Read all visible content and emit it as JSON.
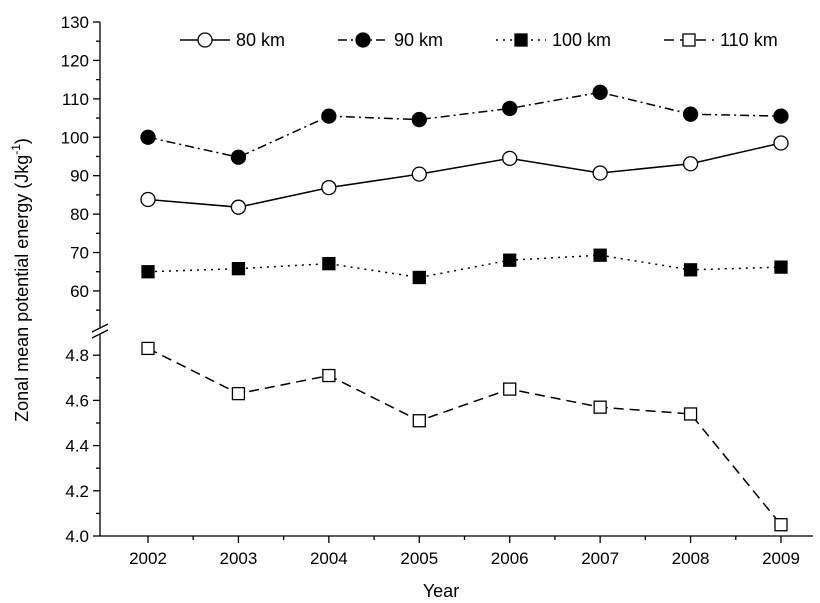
{
  "chart_data": {
    "type": "line",
    "xlabel": "Year",
    "ylabel_main": "Zonal mean potential energy (Jkg",
    "ylabel_sup": "-1",
    "ylabel_end": ")",
    "x": [
      "2002",
      "2003",
      "2004",
      "2005",
      "2006",
      "2007",
      "2008",
      "2009"
    ],
    "y_upper": {
      "range": [
        50,
        130
      ],
      "ticks": [
        "60",
        "70",
        "80",
        "90",
        "100",
        "110",
        "120",
        "130"
      ]
    },
    "y_lower": {
      "range": [
        4.0,
        4.9
      ],
      "ticks": [
        "4.0",
        "4.2",
        "4.4",
        "4.6",
        "4.8"
      ]
    },
    "axis_break": true,
    "grid": false,
    "legend_position": "top",
    "series": [
      {
        "name": "80 km",
        "panel": "upper",
        "marker": "open-circle",
        "line": "solid",
        "values": [
          83.8,
          81.8,
          86.9,
          90.4,
          94.5,
          90.7,
          93.1,
          98.5
        ]
      },
      {
        "name": "90 km",
        "panel": "upper",
        "marker": "filled-circle",
        "line": "dash-dot",
        "values": [
          100.0,
          94.8,
          105.5,
          104.6,
          107.5,
          111.7,
          106.0,
          105.5
        ]
      },
      {
        "name": "100 km",
        "panel": "upper",
        "marker": "filled-square",
        "line": "dotted",
        "values": [
          65.0,
          65.8,
          67.1,
          63.5,
          68.0,
          69.3,
          65.5,
          66.2
        ]
      },
      {
        "name": "110 km",
        "panel": "lower",
        "marker": "open-square",
        "line": "dashed",
        "values": [
          4.83,
          4.63,
          4.71,
          4.51,
          4.65,
          4.57,
          4.54,
          4.05
        ]
      }
    ]
  }
}
